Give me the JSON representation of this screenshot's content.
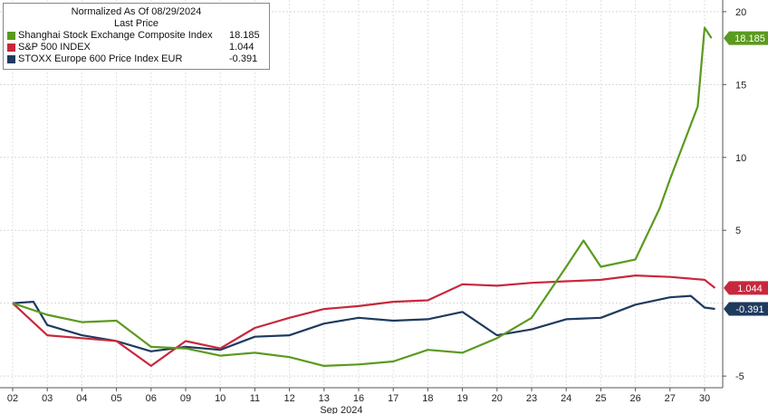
{
  "chart_data": {
    "type": "line",
    "title": "Normalized As Of 08/29/2024",
    "subtitle": "Last Price",
    "xlabel": "Sep 2024",
    "ylabel": "",
    "ylim": [
      -5.8,
      20.8
    ],
    "yticks": [
      20,
      15,
      10,
      5,
      -5
    ],
    "grid": true,
    "legend_position": "top-left",
    "categories": [
      "02",
      "03",
      "04",
      "05",
      "06",
      "09",
      "10",
      "11",
      "12",
      "13",
      "16",
      "17",
      "18",
      "19",
      "20",
      "23",
      "24",
      "25",
      "26",
      "27",
      "30"
    ],
    "series": [
      {
        "name": "Shanghai Stock Exchange Composite Index",
        "last_value": "18.185",
        "color": "#5a9a1e",
        "x": [
          0,
          1,
          2,
          3,
          4,
          5,
          6,
          7,
          8,
          9,
          10,
          11,
          12,
          13,
          14,
          15,
          16,
          16.5,
          17,
          18,
          18.7,
          19,
          19.8,
          20,
          20.2
        ],
        "values": [
          0,
          -0.8,
          -1.3,
          -1.2,
          -3,
          -3.1,
          -3.6,
          -3.4,
          -3.7,
          -4.3,
          -4.2,
          -4.0,
          -3.2,
          -3.4,
          -2.4,
          -1.0,
          2.5,
          4.3,
          2.5,
          3.0,
          6.5,
          8.5,
          13.5,
          18.9,
          18.185
        ]
      },
      {
        "name": "S&P 500 INDEX",
        "last_value": "1.044",
        "color": "#c8283c",
        "x": [
          0,
          1,
          2,
          3,
          4,
          5,
          6,
          7,
          8,
          9,
          10,
          11,
          12,
          13,
          14,
          15,
          16,
          17,
          18,
          19,
          20,
          20.3
        ],
        "values": [
          0,
          -2.2,
          -2.4,
          -2.6,
          -4.3,
          -2.6,
          -3.1,
          -1.7,
          -1.0,
          -0.4,
          -0.2,
          0.1,
          0.2,
          1.3,
          1.2,
          1.4,
          1.5,
          1.6,
          1.9,
          1.8,
          1.6,
          1.044
        ]
      },
      {
        "name": "STOXX Europe 600 Price Index EUR",
        "last_value": "-0.391",
        "color": "#1f3a5f",
        "x": [
          0,
          0.6,
          1,
          2,
          3,
          4,
          5,
          6,
          7,
          8,
          9,
          10,
          11,
          12,
          13,
          14,
          15,
          16,
          17,
          18,
          19,
          19.6,
          20,
          20.3
        ],
        "values": [
          0,
          0.1,
          -1.5,
          -2.2,
          -2.6,
          -3.3,
          -3.0,
          -3.2,
          -2.3,
          -2.2,
          -1.4,
          -1.0,
          -1.2,
          -1.1,
          -0.6,
          -2.2,
          -1.8,
          -1.1,
          -1.0,
          -0.1,
          0.4,
          0.5,
          -0.3,
          -0.391
        ]
      }
    ]
  }
}
